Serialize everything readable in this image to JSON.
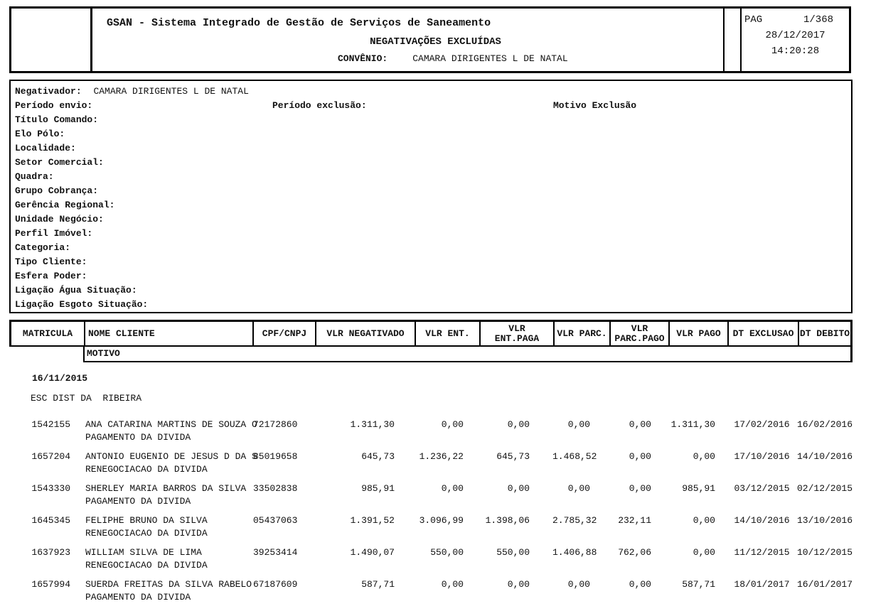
{
  "report": {
    "title": "GSAN - Sistema Integrado de Gestão de Serviços de Saneamento",
    "subtitle": "NEGATIVAÇÕES EXCLUÍDAS",
    "convenio_label": "CONVÊNIO:",
    "convenio_value": "CAMARA DIRIGENTES L DE NATAL",
    "pag_label": "PAG",
    "page_number": "1/368",
    "date": "28/12/2017",
    "time": "14:20:28"
  },
  "filters": {
    "negativador_label": "Negativador:",
    "negativador_value": "CAMARA DIRIGENTES L DE NATAL",
    "periodo_envio_label": "Período envio:",
    "periodo_exclusao_label": "Período exclusão:",
    "motivo_exclusao_label": "Motivo Exclusão",
    "rows": [
      "Título Comando:",
      "Elo Pólo:",
      "Localidade:",
      "Setor Comercial:",
      "Quadra:",
      "Grupo Cobrança:",
      "Gerência Regional:",
      "Unidade Negócio:",
      "Perfil Imóvel:",
      "Categoria:",
      "Tipo Cliente:",
      "Esfera Poder:",
      "Ligação Água Situação:",
      "Ligação Esgoto Situação:"
    ]
  },
  "table": {
    "columns": [
      "MATRICULA",
      "NOME CLIENTE",
      "CPF/CNPJ",
      "VLR NEGATIVADO",
      "VLR ENT.",
      "VLR\nENT.PAGA",
      "VLR PARC.",
      "VLR\nPARC.PAGO",
      "VLR PAGO",
      "DT EXCLUSAO",
      "DT DEBITO"
    ],
    "motivo_header": "MOTIVO",
    "group_date": "16/11/2015",
    "group_name": "ESC DIST DA  RIBEIRA",
    "rows": [
      {
        "matricula": "1542155",
        "nome": "ANA CATARINA MARTINS DE SOUZA O",
        "cpf": "72172860",
        "vlr_negativado": "1.311,30",
        "vlr_ent": "0,00",
        "vlr_ent_paga": "0,00",
        "vlr_parc": "0,00",
        "vlr_parc_pago": "0,00",
        "vlr_pago": "1.311,30",
        "dt_exclusao": "17/02/2016",
        "dt_debito": "16/02/2016",
        "motivo": "PAGAMENTO DA DIVIDA"
      },
      {
        "matricula": "1657204",
        "nome": "ANTONIO EUGENIO DE JESUS D DA S",
        "cpf": "85019658",
        "vlr_negativado": "645,73",
        "vlr_ent": "1.236,22",
        "vlr_ent_paga": "645,73",
        "vlr_parc": "1.468,52",
        "vlr_parc_pago": "0,00",
        "vlr_pago": "0,00",
        "dt_exclusao": "17/10/2016",
        "dt_debito": "14/10/2016",
        "motivo": "RENEGOCIACAO DA DIVIDA"
      },
      {
        "matricula": "1543330",
        "nome": "SHERLEY MARIA BARROS DA SILVA",
        "cpf": "33502838",
        "vlr_negativado": "985,91",
        "vlr_ent": "0,00",
        "vlr_ent_paga": "0,00",
        "vlr_parc": "0,00",
        "vlr_parc_pago": "0,00",
        "vlr_pago": "985,91",
        "dt_exclusao": "03/12/2015",
        "dt_debito": "02/12/2015",
        "motivo": "PAGAMENTO DA DIVIDA"
      },
      {
        "matricula": "1645345",
        "nome": "FELIPHE BRUNO DA SILVA",
        "cpf": "05437063",
        "vlr_negativado": "1.391,52",
        "vlr_ent": "3.096,99",
        "vlr_ent_paga": "1.398,06",
        "vlr_parc": "2.785,32",
        "vlr_parc_pago": "232,11",
        "vlr_pago": "0,00",
        "dt_exclusao": "14/10/2016",
        "dt_debito": "13/10/2016",
        "motivo": "RENEGOCIACAO DA DIVIDA"
      },
      {
        "matricula": "1637923",
        "nome": "WILLIAM SILVA DE LIMA",
        "cpf": "39253414",
        "vlr_negativado": "1.490,07",
        "vlr_ent": "550,00",
        "vlr_ent_paga": "550,00",
        "vlr_parc": "1.406,88",
        "vlr_parc_pago": "762,06",
        "vlr_pago": "0,00",
        "dt_exclusao": "11/12/2015",
        "dt_debito": "10/12/2015",
        "motivo": "RENEGOCIACAO DA DIVIDA"
      },
      {
        "matricula": "1657994",
        "nome": "SUERDA FREITAS DA SILVA RABELO",
        "cpf": "67187609",
        "vlr_negativado": "587,71",
        "vlr_ent": "0,00",
        "vlr_ent_paga": "0,00",
        "vlr_parc": "0,00",
        "vlr_parc_pago": "0,00",
        "vlr_pago": "587,71",
        "dt_exclusao": "18/01/2017",
        "dt_debito": "16/01/2017",
        "motivo": "PAGAMENTO DA DIVIDA"
      }
    ]
  }
}
